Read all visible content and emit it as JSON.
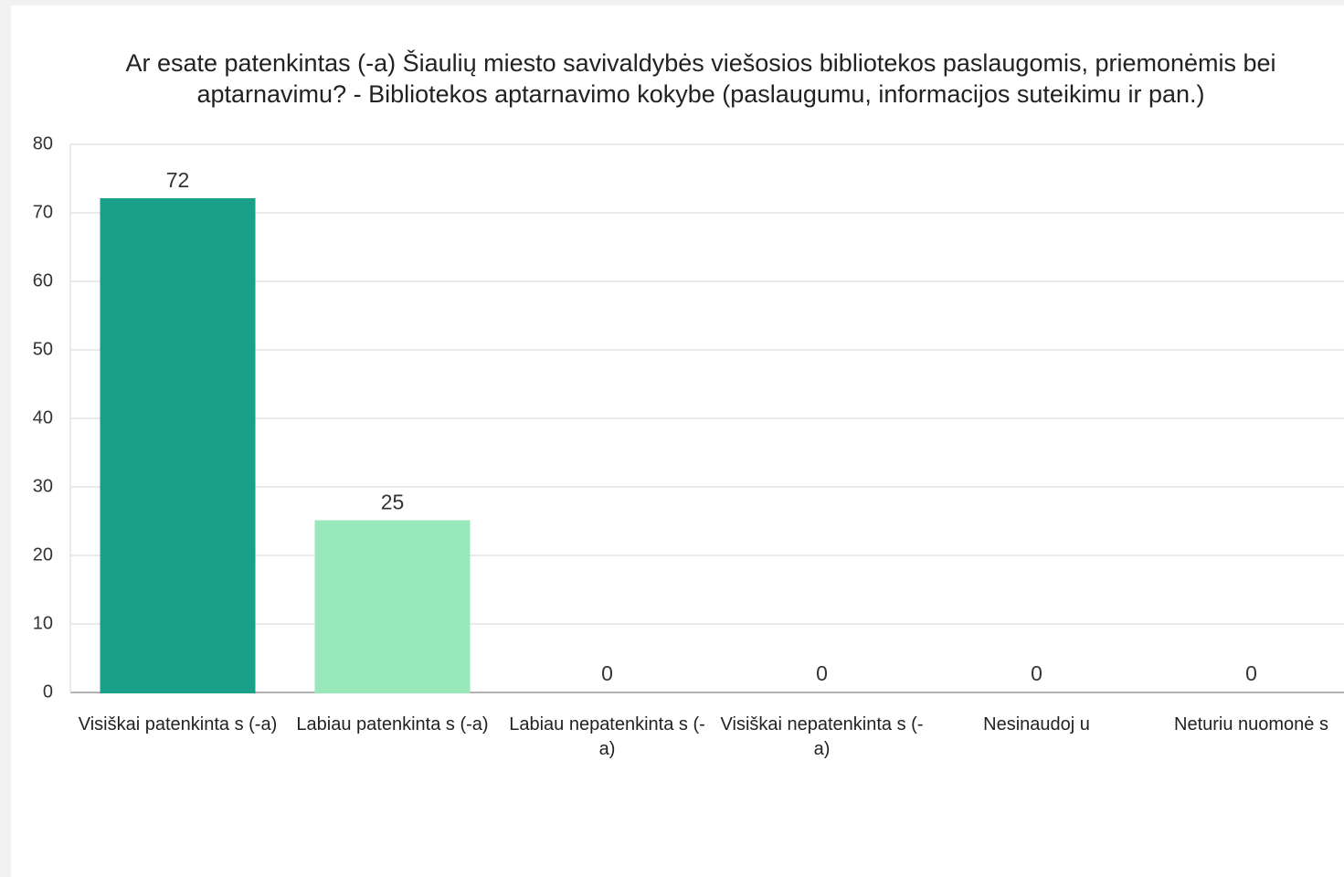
{
  "chart_data": {
    "type": "bar",
    "title": "Ar esate patenkintas (-a) Šiaulių miesto savivaldybės viešosios bibliotekos paslaugomis, priemonėmis bei aptarnavimu? - Bibliotekos aptarnavimo kokybe (paslaugumu, informacijos suteikimu ir pan.)",
    "categories": [
      "Visiškai patenkinta s (-a)",
      "Labiau patenkinta s (-a)",
      "Labiau nepatenkinta s (-a)",
      "Visiškai nepatenkinta s (-a)",
      "Nesinaudoj u",
      "Neturiu nuomonė s"
    ],
    "values": [
      72,
      25,
      0,
      0,
      0,
      0
    ],
    "colors": [
      "#1aa088",
      "#99e8bb",
      "#6f9e70",
      "#c2d96a",
      "#eef25a",
      "#6ed0c6"
    ],
    "ylim": [
      0,
      80
    ],
    "yticks": [
      0,
      10,
      20,
      30,
      40,
      50,
      60,
      70,
      80
    ],
    "grid": true
  }
}
